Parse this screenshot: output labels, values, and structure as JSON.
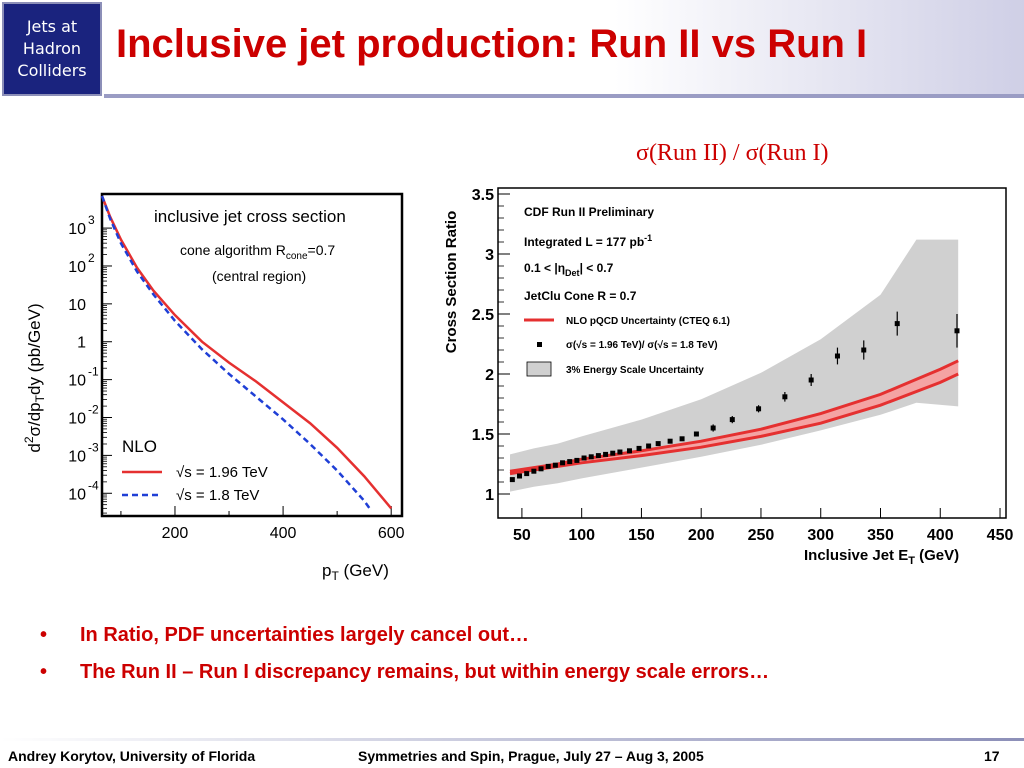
{
  "header": {
    "logo_lines": [
      "Jets at",
      "Hadron",
      "Colliders"
    ],
    "title": "Inclusive jet production: Run II vs Run I"
  },
  "right_panel_title": "σ(Run II) / σ(Run I)",
  "bullets": [
    "In Ratio, PDF uncertainties largely cancel out…",
    "The Run II – Run I discrepancy remains, but within energy scale errors…"
  ],
  "footer": {
    "left": "Andrey Korytov, University of Florida",
    "center": "Symmetries and Spin, Prague, July 27 – Aug 3, 2005",
    "page": "17"
  },
  "colors": {
    "title": "#cc0000",
    "logo_bg": "#1a237e",
    "series_run2": "#e53030",
    "series_run1": "#1f3fd6",
    "band": "#d0d0d0"
  },
  "chart_data": [
    {
      "type": "line",
      "annotation_title": "inclusive jet cross section",
      "annotation_lines": [
        "cone algorithm  R",
        "cone",
        "=0.7",
        "(central region)"
      ],
      "legend_title": "NLO",
      "legend_placement": "bottom-left",
      "xlabel": "p",
      "xlabel_sub": "T",
      "xlabel_unit": " (GeV)",
      "ylabel": "d²σ/dp_Tdy   (pb/GeV)",
      "ylabel_parts": [
        "d",
        "2",
        "σ/dp",
        "T",
        "dy   (pb/GeV)"
      ],
      "x_ticks": [
        200,
        400,
        600
      ],
      "y_tick_labels": [
        {
          "base": "10",
          "exp": "3"
        },
        {
          "base": "10",
          "exp": "2"
        },
        {
          "base": "10",
          "exp": ""
        },
        {
          "base": "1",
          "exp": ""
        },
        {
          "base": "10",
          "exp": "-1"
        },
        {
          "base": "10",
          "exp": "-2"
        },
        {
          "base": "10",
          "exp": "-3"
        },
        {
          "base": "10",
          "exp": "-4"
        }
      ],
      "y_tick_log_values": [
        3,
        2,
        1,
        0,
        -1,
        -2,
        -3,
        -4
      ],
      "y_scale": "log",
      "xlim": [
        65,
        620
      ],
      "ylim_log10": [
        -4.6,
        3.9
      ],
      "series": [
        {
          "name": "√s = 1.96 TeV",
          "style": "solid",
          "x": [
            65,
            80,
            100,
            130,
            160,
            200,
            250,
            300,
            350,
            400,
            450,
            500,
            550,
            600
          ],
          "log10_y": [
            3.85,
            3.3,
            2.7,
            1.95,
            1.35,
            0.7,
            0.0,
            -0.55,
            -1.05,
            -1.6,
            -2.15,
            -2.8,
            -3.55,
            -4.4
          ]
        },
        {
          "name": "√s = 1.8 TeV",
          "style": "dashed",
          "x": [
            65,
            80,
            100,
            130,
            160,
            200,
            250,
            300,
            350,
            400,
            450,
            500,
            550,
            560
          ],
          "log10_y": [
            3.85,
            3.25,
            2.6,
            1.85,
            1.25,
            0.55,
            -0.2,
            -0.85,
            -1.45,
            -2.05,
            -2.7,
            -3.4,
            -4.2,
            -4.4
          ]
        }
      ]
    },
    {
      "type": "scatter",
      "annotation_lines": [
        "CDF Run II Preliminary",
        "Integrated L = 177 pb",
        "-1",
        "0.1 < |η",
        "Det",
        "| < 0.7",
        "JetClu Cone R = 0.7"
      ],
      "legend": [
        "NLO pQCD Uncertainty (CTEQ 6.1)",
        "σ(√s = 1.96 TeV)/ σ(√s = 1.8 TeV)",
        "3% Energy Scale Uncertainty"
      ],
      "legend_placement": "top-left",
      "xlabel": "Inclusive Jet E",
      "xlabel_sub": "T",
      "xlabel_unit": " (GeV)",
      "ylabel": "Cross Section Ratio",
      "xlim": [
        30,
        455
      ],
      "ylim": [
        0.8,
        3.55
      ],
      "x_ticks": [
        50,
        100,
        150,
        200,
        250,
        300,
        350,
        400,
        450
      ],
      "y_ticks": [
        1,
        1.5,
        2,
        2.5,
        3,
        3.5
      ],
      "y_tick_labels": [
        "1",
        "1.5",
        "2",
        "2.5",
        "3",
        "3.5"
      ],
      "points": {
        "x": [
          42,
          48,
          54,
          60,
          66,
          72,
          78,
          84,
          90,
          96,
          102,
          108,
          114,
          120,
          126,
          132,
          140,
          148,
          156,
          164,
          174,
          184,
          196,
          210,
          226,
          248,
          270,
          292,
          314,
          336,
          364,
          414
        ],
        "y": [
          1.12,
          1.15,
          1.17,
          1.19,
          1.21,
          1.23,
          1.24,
          1.26,
          1.27,
          1.28,
          1.3,
          1.31,
          1.32,
          1.33,
          1.34,
          1.35,
          1.36,
          1.38,
          1.4,
          1.42,
          1.44,
          1.46,
          1.5,
          1.55,
          1.62,
          1.71,
          1.81,
          1.95,
          2.15,
          2.2,
          2.42,
          2.36
        ],
        "err": [
          0.02,
          0.02,
          0.02,
          0.02,
          0.02,
          0.02,
          0.02,
          0.02,
          0.02,
          0.02,
          0.02,
          0.02,
          0.02,
          0.02,
          0.02,
          0.02,
          0.02,
          0.02,
          0.02,
          0.02,
          0.02,
          0.02,
          0.02,
          0.03,
          0.03,
          0.03,
          0.04,
          0.05,
          0.07,
          0.08,
          0.1,
          0.14
        ]
      },
      "nlo_band": {
        "x": [
          40,
          60,
          80,
          100,
          150,
          200,
          250,
          300,
          350,
          400,
          415
        ],
        "lower": [
          1.17,
          1.2,
          1.23,
          1.26,
          1.32,
          1.39,
          1.48,
          1.59,
          1.74,
          1.93,
          2.0
        ],
        "upper": [
          1.19,
          1.22,
          1.25,
          1.29,
          1.36,
          1.44,
          1.54,
          1.67,
          1.83,
          2.04,
          2.11
        ]
      },
      "energy_scale_band": {
        "x": [
          40,
          60,
          80,
          100,
          150,
          200,
          250,
          300,
          350,
          380,
          415
        ],
        "lower": [
          1.02,
          1.06,
          1.09,
          1.13,
          1.22,
          1.31,
          1.41,
          1.53,
          1.66,
          1.76,
          1.73
        ],
        "upper": [
          1.33,
          1.38,
          1.42,
          1.48,
          1.62,
          1.79,
          2.01,
          2.29,
          2.66,
          3.12,
          3.12
        ]
      }
    }
  ]
}
